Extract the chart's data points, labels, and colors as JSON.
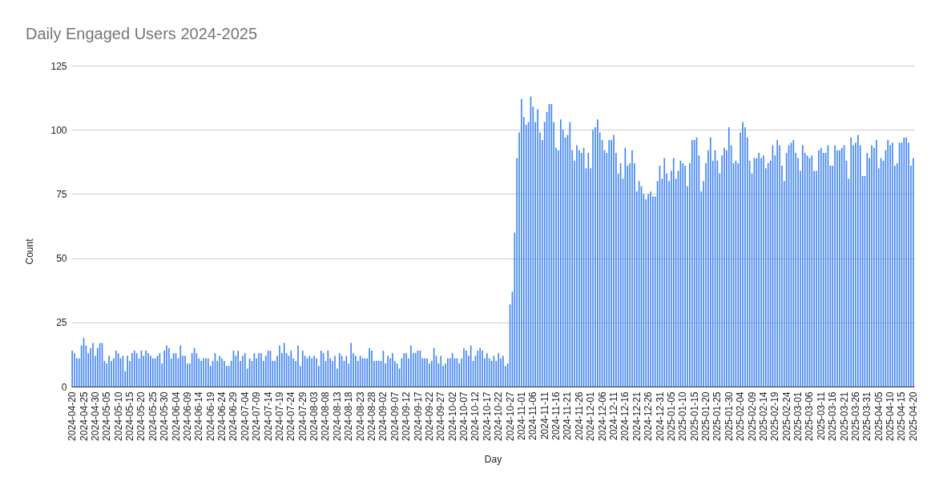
{
  "chart_data": {
    "type": "bar",
    "title": "Daily Engaged Users 2024-2025",
    "xlabel": "Day",
    "ylabel": "Count",
    "categories": [
      "2024-04-20",
      null,
      null,
      null,
      null,
      "2024-04-25",
      null,
      null,
      null,
      null,
      "2024-04-30",
      null,
      null,
      null,
      null,
      "2024-05-05",
      null,
      null,
      null,
      null,
      "2024-05-10",
      null,
      null,
      null,
      null,
      "2024-05-15",
      null,
      null,
      null,
      null,
      "2024-05-20",
      null,
      null,
      null,
      null,
      "2024-05-25",
      null,
      null,
      null,
      null,
      "2024-05-30",
      null,
      null,
      null,
      null,
      "2024-06-04",
      null,
      null,
      null,
      null,
      "2024-06-09",
      null,
      null,
      null,
      null,
      "2024-06-14",
      null,
      null,
      null,
      null,
      "2024-06-19",
      null,
      null,
      null,
      null,
      "2024-06-24",
      null,
      null,
      null,
      null,
      "2024-06-29",
      null,
      null,
      null,
      null,
      "2024-07-04",
      null,
      null,
      null,
      null,
      "2024-07-09",
      null,
      null,
      null,
      null,
      "2024-07-14",
      null,
      null,
      null,
      null,
      "2024-07-19",
      null,
      null,
      null,
      null,
      "2024-07-24",
      null,
      null,
      null,
      null,
      "2024-07-29",
      null,
      null,
      null,
      null,
      "2024-08-03",
      null,
      null,
      null,
      null,
      "2024-08-08",
      null,
      null,
      null,
      null,
      "2024-08-13",
      null,
      null,
      null,
      null,
      "2024-08-18",
      null,
      null,
      null,
      null,
      "2024-08-23",
      null,
      null,
      null,
      null,
      "2024-08-28",
      null,
      null,
      null,
      null,
      "2024-09-02",
      null,
      null,
      null,
      null,
      "2024-09-07",
      null,
      null,
      null,
      null,
      "2024-09-12",
      null,
      null,
      null,
      null,
      "2024-09-17",
      null,
      null,
      null,
      null,
      "2024-09-22",
      null,
      null,
      null,
      null,
      "2024-09-27",
      null,
      null,
      null,
      null,
      "2024-10-02",
      null,
      null,
      null,
      null,
      "2024-10-07",
      null,
      null,
      null,
      null,
      "2024-10-12",
      null,
      null,
      null,
      null,
      "2024-10-17",
      null,
      null,
      null,
      null,
      "2024-10-22",
      null,
      null,
      null,
      null,
      "2024-10-27",
      null,
      null,
      null,
      null,
      "2024-11-01",
      null,
      null,
      null,
      null,
      "2024-11-06",
      null,
      null,
      null,
      null,
      "2024-11-11",
      null,
      null,
      null,
      null,
      "2024-11-16",
      null,
      null,
      null,
      null,
      "2024-11-21",
      null,
      null,
      null,
      null,
      "2024-11-26",
      null,
      null,
      null,
      null,
      "2024-12-01",
      null,
      null,
      null,
      null,
      "2024-12-06",
      null,
      null,
      null,
      null,
      "2024-12-11",
      null,
      null,
      null,
      null,
      "2024-12-16",
      null,
      null,
      null,
      null,
      "2024-12-21",
      null,
      null,
      null,
      null,
      "2024-12-26",
      null,
      null,
      null,
      null,
      "2024-12-31",
      null,
      null,
      null,
      null,
      "2025-01-05",
      null,
      null,
      null,
      null,
      "2025-01-10",
      null,
      null,
      null,
      null,
      "2025-01-15",
      null,
      null,
      null,
      null,
      "2025-01-20",
      null,
      null,
      null,
      null,
      "2025-01-25",
      null,
      null,
      null,
      null,
      "2025-01-30",
      null,
      null,
      null,
      null,
      "2025-02-04",
      null,
      null,
      null,
      null,
      "2025-02-09",
      null,
      null,
      null,
      null,
      "2025-02-14",
      null,
      null,
      null,
      null,
      "2025-02-19",
      null,
      null,
      null,
      null,
      "2025-02-24",
      null,
      null,
      null,
      null,
      "2025-03-01",
      null,
      null,
      null,
      null,
      "2025-03-06",
      null,
      null,
      null,
      null,
      "2025-03-11",
      null,
      null,
      null,
      null,
      "2025-03-16",
      null,
      null,
      null,
      null,
      "2025-03-21",
      null,
      null,
      null,
      null,
      "2025-03-26",
      null,
      null,
      null,
      null,
      "2025-03-31",
      null,
      null,
      null,
      null,
      "2025-04-05",
      null,
      null,
      null,
      null,
      "2025-04-10",
      null,
      null,
      null,
      null,
      "2025-04-15",
      null,
      null,
      null,
      null,
      "2025-04-20"
    ],
    "values": [
      14,
      13,
      11,
      11,
      16,
      19,
      16,
      13,
      15,
      17,
      12,
      15,
      17,
      17,
      10,
      9,
      12,
      10,
      11,
      14,
      13,
      11,
      12,
      6,
      12,
      10,
      13,
      14,
      13,
      11,
      14,
      12,
      14,
      13,
      12,
      11,
      11,
      12,
      13,
      9,
      14,
      16,
      15,
      11,
      13,
      13,
      11,
      16,
      12,
      12,
      9,
      9,
      13,
      15,
      13,
      11,
      10,
      11,
      11,
      11,
      8,
      10,
      13,
      10,
      12,
      11,
      10,
      8,
      8,
      10,
      14,
      12,
      14,
      10,
      12,
      13,
      7,
      11,
      10,
      13,
      11,
      13,
      13,
      10,
      12,
      14,
      14,
      10,
      10,
      12,
      16,
      13,
      17,
      13,
      12,
      14,
      11,
      10,
      16,
      8,
      14,
      12,
      11,
      12,
      11,
      12,
      11,
      8,
      14,
      13,
      10,
      14,
      11,
      10,
      12,
      7,
      13,
      12,
      10,
      12,
      9,
      17,
      13,
      12,
      10,
      12,
      11,
      11,
      11,
      15,
      14,
      10,
      10,
      10,
      10,
      14,
      9,
      12,
      11,
      13,
      10,
      9,
      7,
      11,
      13,
      13,
      11,
      16,
      13,
      13,
      14,
      14,
      11,
      11,
      11,
      9,
      10,
      15,
      12,
      9,
      12,
      8,
      9,
      11,
      11,
      13,
      11,
      11,
      9,
      11,
      15,
      14,
      12,
      16,
      10,
      12,
      14,
      15,
      14,
      11,
      13,
      11,
      10,
      12,
      10,
      13,
      11,
      12,
      8,
      9,
      32,
      37,
      60,
      89,
      99,
      112,
      105,
      102,
      103,
      113,
      109,
      103,
      108,
      99,
      96,
      103,
      107,
      110,
      110,
      103,
      93,
      92,
      104,
      100,
      97,
      98,
      103,
      92,
      88,
      94,
      92,
      91,
      93,
      85,
      91,
      85,
      100,
      101,
      104,
      99,
      96,
      92,
      91,
      96,
      96,
      98,
      91,
      83,
      87,
      81,
      93,
      86,
      87,
      92,
      87,
      76,
      80,
      78,
      75,
      73,
      75,
      76,
      74,
      74,
      80,
      86,
      81,
      89,
      83,
      80,
      84,
      89,
      81,
      84,
      88,
      87,
      86,
      78,
      87,
      96,
      96,
      97,
      90,
      76,
      80,
      87,
      92,
      97,
      88,
      92,
      88,
      83,
      90,
      93,
      92,
      101,
      94,
      87,
      88,
      87,
      99,
      103,
      101,
      97,
      88,
      83,
      89,
      89,
      91,
      89,
      90,
      85,
      87,
      88,
      94,
      90,
      96,
      94,
      86,
      80,
      91,
      94,
      95,
      96,
      91,
      89,
      84,
      94,
      91,
      90,
      89,
      90,
      84,
      84,
      92,
      93,
      91,
      91,
      94,
      86,
      86,
      94,
      92,
      92,
      93,
      94,
      88,
      81,
      97,
      94,
      95,
      98,
      94,
      82,
      82,
      91,
      89,
      94,
      93,
      96,
      85,
      89,
      88,
      92,
      96,
      94,
      95,
      86,
      87,
      95,
      95,
      97,
      97,
      95,
      86,
      89
    ],
    "color": "#4285f4",
    "ylim": [
      0,
      125
    ],
    "yticks": [
      0,
      25,
      50,
      75,
      100,
      125
    ],
    "grid": "y"
  }
}
